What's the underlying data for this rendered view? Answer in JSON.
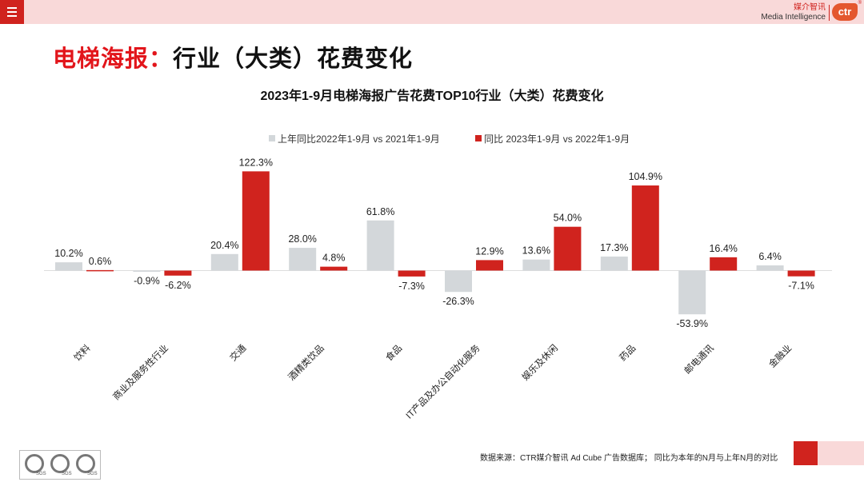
{
  "header": {
    "brand_cn": "媒介智讯",
    "brand_en": "Media Intelligence",
    "logo_text": "ctr",
    "logo_reg": "®"
  },
  "page_title": {
    "red_part": "电梯海报：",
    "black_part": "行业（大类）花费变化"
  },
  "chart_data": {
    "type": "bar",
    "title": "2023年1-9月电梯海报广告花费TOP10行业（大类）花费变化",
    "categories": [
      "饮料",
      "商业及服务性行业",
      "交通",
      "酒精类饮品",
      "食品",
      "IT产品及办公自动化服务",
      "娱乐及休闲",
      "药品",
      "邮电通讯",
      "金融业"
    ],
    "series": [
      {
        "name": "上年同比2022年1-9月 vs 2021年1-9月",
        "color": "#d3d7da",
        "values": [
          10.2,
          -0.9,
          20.4,
          28.0,
          61.8,
          -26.3,
          13.6,
          17.3,
          -53.9,
          6.4
        ],
        "labels": [
          "10.2%",
          "-0.9%",
          "20.4%",
          "28.0%",
          "61.8%",
          "-26.3%",
          "13.6%",
          "17.3%",
          "-53.9%",
          "6.4%"
        ]
      },
      {
        "name": "同比 2023年1-9月  vs 2022年1-9月",
        "color": "#d0231e",
        "values": [
          0.6,
          -6.2,
          122.3,
          4.8,
          -7.3,
          12.9,
          54.0,
          104.9,
          16.4,
          -7.1
        ],
        "labels": [
          "0.6%",
          "-6.2%",
          "122.3%",
          "4.8%",
          "-7.3%",
          "12.9%",
          "54.0%",
          "104.9%",
          "16.4%",
          "-7.1%"
        ]
      }
    ],
    "ylim": [
      -60,
      125
    ],
    "legend_position": "top-center",
    "grid": false,
    "xlabel": "",
    "ylabel": ""
  },
  "footer": {
    "source": "数据来源：CTR媒介智讯 Ad Cube 广告数据库；  同比为本年的N月与上年N月的对比",
    "cert_label": "SGS"
  }
}
